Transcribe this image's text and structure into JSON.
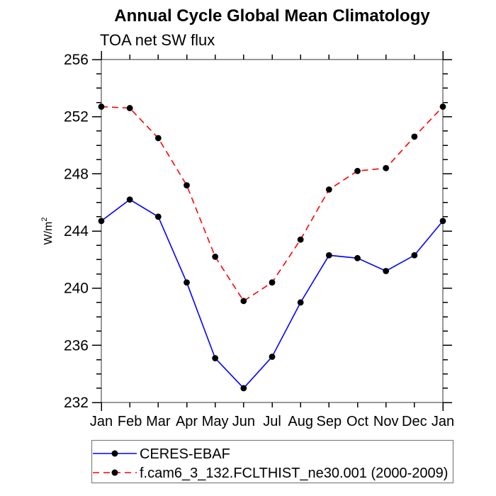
{
  "page": {
    "background": "#ffffff",
    "text_color": "#000000"
  },
  "chart_data": {
    "type": "line",
    "title": "Annual Cycle Global Mean Climatology",
    "subtitle": "TOA net SW flux",
    "ylabel_base": "W/m",
    "ylabel_exponent": "2",
    "categories": [
      "Jan",
      "Feb",
      "Mar",
      "Apr",
      "May",
      "Jun",
      "Jul",
      "Aug",
      "Sep",
      "Oct",
      "Nov",
      "Dec",
      "Jan"
    ],
    "ylim": [
      232,
      256
    ],
    "ytick_labels": [
      232,
      236,
      240,
      244,
      248,
      252,
      256
    ],
    "ytick_minor_step": 1,
    "grid": false,
    "legend_position": "bottom-left",
    "series": [
      {
        "name": "CERES-EBAF",
        "color": "#0000ff",
        "line_style": "solid",
        "marker": "filled-circle",
        "marker_color": "#000000",
        "values": [
          244.7,
          246.2,
          245.0,
          240.4,
          235.1,
          233.0,
          235.2,
          239.0,
          242.3,
          242.1,
          241.2,
          242.3,
          244.7
        ]
      },
      {
        "name": "f.cam6_3_132.FCLTHIST_ne30.001 (2000-2009)",
        "color": "#ff0000",
        "line_style": "dashed",
        "marker": "filled-circle",
        "marker_color": "#000000",
        "values": [
          252.7,
          252.6,
          250.5,
          247.2,
          242.2,
          239.1,
          240.4,
          243.4,
          246.9,
          248.2,
          248.4,
          250.6,
          252.7
        ]
      }
    ]
  }
}
